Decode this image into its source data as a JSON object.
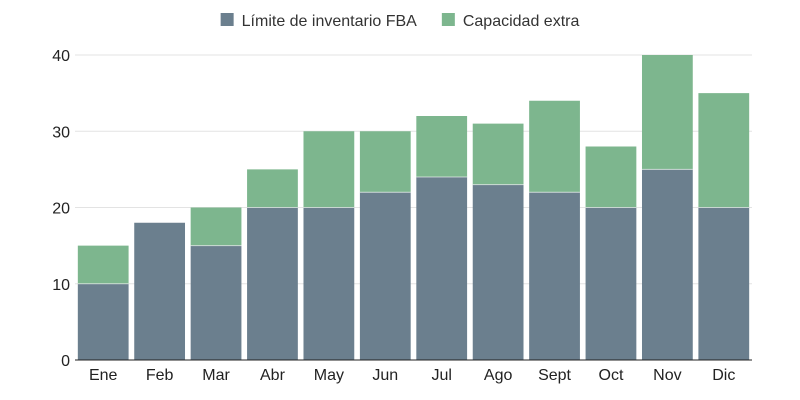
{
  "chart_data": {
    "type": "bar",
    "stacked": true,
    "categories": [
      "Ene",
      "Feb",
      "Mar",
      "Abr",
      "May",
      "Jun",
      "Jul",
      "Ago",
      "Sept",
      "Oct",
      "Nov",
      "Dic"
    ],
    "series": [
      {
        "name": "Límite de inventario FBA",
        "color": "#6b7f8e",
        "values": [
          10,
          18,
          15,
          20,
          20,
          22,
          24,
          23,
          22,
          20,
          25,
          20
        ]
      },
      {
        "name": "Capacidad extra",
        "color": "#7db68e",
        "values": [
          5,
          0,
          5,
          5,
          10,
          8,
          8,
          8,
          12,
          8,
          15,
          15
        ]
      }
    ],
    "title": "",
    "xlabel": "",
    "ylabel": "",
    "ylim": [
      0,
      40
    ],
    "yticks": [
      0,
      10,
      20,
      30,
      40
    ],
    "grid": true,
    "legend_position": "top-center"
  }
}
